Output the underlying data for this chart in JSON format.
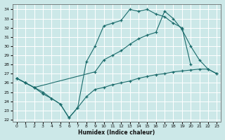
{
  "xlabel": "Humidex (Indice chaleur)",
  "bg_color": "#cce8e8",
  "grid_color": "#ffffff",
  "line_color": "#1a6b6b",
  "xlim": [
    -0.5,
    23.5
  ],
  "ylim": [
    21.8,
    34.6
  ],
  "xticks": [
    0,
    1,
    2,
    3,
    4,
    5,
    6,
    7,
    8,
    9,
    10,
    11,
    12,
    13,
    14,
    15,
    16,
    17,
    18,
    19,
    20,
    21,
    22,
    23
  ],
  "yticks": [
    22,
    23,
    24,
    25,
    26,
    27,
    28,
    29,
    30,
    31,
    32,
    33,
    34
  ],
  "line_high": {
    "x": [
      0,
      1,
      2,
      3,
      4,
      5,
      6,
      7,
      8,
      9,
      10,
      11,
      12,
      13,
      14,
      15,
      16,
      17,
      18,
      19,
      20
    ],
    "y": [
      26.5,
      26.0,
      25.5,
      24.8,
      24.3,
      23.7,
      22.2,
      23.3,
      28.3,
      30.0,
      32.2,
      32.5,
      32.8,
      34.0,
      33.8,
      34.0,
      33.5,
      33.2,
      32.5,
      32.0,
      28.0
    ]
  },
  "line_mid": {
    "x": [
      0,
      1,
      2,
      9,
      10,
      11,
      12,
      13,
      14,
      15,
      16,
      17,
      18,
      19,
      20,
      21,
      22,
      23
    ],
    "y": [
      26.5,
      26.0,
      25.5,
      27.2,
      28.5,
      29.0,
      29.5,
      30.2,
      30.8,
      31.2,
      31.5,
      33.8,
      33.0,
      31.8,
      30.0,
      28.5,
      27.5,
      27.0
    ]
  },
  "line_low": {
    "x": [
      0,
      1,
      2,
      3,
      4,
      5,
      6,
      7,
      8,
      9,
      10,
      11,
      12,
      13,
      14,
      15,
      16,
      17,
      18,
      19,
      20,
      21,
      22,
      23
    ],
    "y": [
      26.5,
      26.0,
      25.5,
      25.0,
      24.3,
      23.7,
      22.2,
      23.3,
      24.5,
      25.3,
      25.5,
      25.8,
      26.0,
      26.2,
      26.5,
      26.7,
      26.9,
      27.0,
      27.2,
      27.3,
      27.4,
      27.5,
      27.5,
      27.0
    ]
  }
}
